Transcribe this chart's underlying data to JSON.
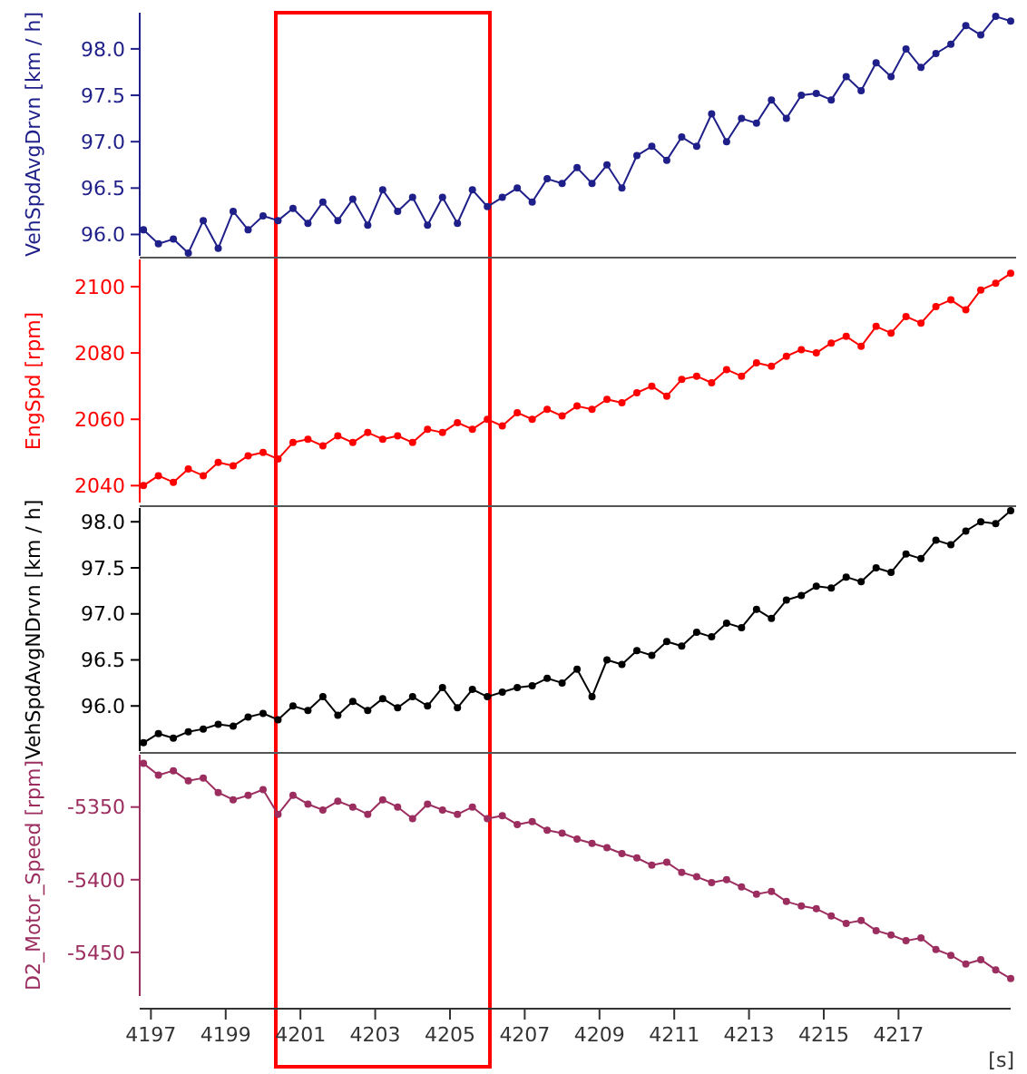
{
  "chart_data": [
    {
      "type": "line",
      "ylabel": "VehSpdAvgDrvn [km / h]",
      "marker": "circle",
      "tick_labels": "y",
      "xlim": [
        4196.7,
        4220
      ],
      "ylim": [
        95.77,
        98.39
      ],
      "yticks": [
        {
          "value": 96,
          "label": "96.0"
        },
        {
          "value": 96.5,
          "label": "96.5"
        },
        {
          "value": 97,
          "label": "97.0"
        },
        {
          "value": 97.5,
          "label": "97.5"
        },
        {
          "value": 98,
          "label": "98.0"
        }
      ],
      "series": [
        {
          "color": "#1f1f8a",
          "x": [
            4196.8,
            4197.2,
            4197.6,
            4198.0,
            4198.4,
            4198.8,
            4199.2,
            4199.6,
            4200.0,
            4200.4,
            4200.8,
            4201.2,
            4201.6,
            4202.0,
            4202.4,
            4202.8,
            4203.2,
            4203.6,
            4204.0,
            4204.4,
            4204.8,
            4205.2,
            4205.6,
            4206.0,
            4206.4,
            4206.8,
            4207.2,
            4207.6,
            4208.0,
            4208.4,
            4208.8,
            4209.2,
            4209.6,
            4210.0,
            4210.4,
            4210.8,
            4211.2,
            4211.6,
            4212.0,
            4212.4,
            4212.8,
            4213.2,
            4213.6,
            4214.0,
            4214.4,
            4214.8,
            4215.2,
            4215.6,
            4216.0,
            4216.4,
            4216.8,
            4217.2,
            4217.6,
            4218.0,
            4218.4,
            4218.8,
            4219.2,
            4219.6,
            4220.0
          ],
          "values": [
            96.05,
            95.9,
            95.95,
            95.8,
            96.15,
            95.85,
            96.25,
            96.05,
            96.2,
            96.15,
            96.28,
            96.12,
            96.35,
            96.15,
            96.38,
            96.1,
            96.48,
            96.25,
            96.4,
            96.1,
            96.4,
            96.12,
            96.48,
            96.3,
            96.4,
            96.5,
            96.35,
            96.6,
            96.55,
            96.72,
            96.55,
            96.75,
            96.5,
            96.85,
            96.95,
            96.8,
            97.05,
            96.95,
            97.3,
            97.0,
            97.25,
            97.2,
            97.45,
            97.25,
            97.5,
            97.52,
            97.45,
            97.7,
            97.55,
            97.85,
            97.7,
            98.0,
            97.8,
            97.95,
            98.05,
            98.25,
            98.15,
            98.35,
            98.3
          ]
        }
      ]
    },
    {
      "type": "line",
      "ylabel": "EngSpd [rpm]",
      "marker": "circle",
      "tick_labels": "y",
      "xlim": [
        4196.7,
        4220
      ],
      "ylim": [
        2034.9,
        2108.2
      ],
      "yticks": [
        2040,
        2060,
        2080,
        2100
      ],
      "series": [
        {
          "color": "#ff0000",
          "x": [
            4196.8,
            4197.2,
            4197.6,
            4198.0,
            4198.4,
            4198.8,
            4199.2,
            4199.6,
            4200.0,
            4200.4,
            4200.8,
            4201.2,
            4201.6,
            4202.0,
            4202.4,
            4202.8,
            4203.2,
            4203.6,
            4204.0,
            4204.4,
            4204.8,
            4205.2,
            4205.6,
            4206.0,
            4206.4,
            4206.8,
            4207.2,
            4207.6,
            4208.0,
            4208.4,
            4208.8,
            4209.2,
            4209.6,
            4210.0,
            4210.4,
            4210.8,
            4211.2,
            4211.6,
            4212.0,
            4212.4,
            4212.8,
            4213.2,
            4213.6,
            4214.0,
            4214.4,
            4214.8,
            4215.2,
            4215.6,
            4216.0,
            4216.4,
            4216.8,
            4217.2,
            4217.6,
            4218.0,
            4218.4,
            4218.8,
            4219.2,
            4219.6,
            4220.0
          ],
          "values": [
            2040,
            2043,
            2041,
            2045,
            2043,
            2047,
            2046,
            2049,
            2050,
            2048,
            2053,
            2054,
            2052,
            2055,
            2053,
            2056,
            2054,
            2055,
            2053,
            2057,
            2056,
            2059,
            2057,
            2060,
            2058,
            2062,
            2060,
            2063,
            2061,
            2064,
            2063,
            2066,
            2065,
            2068,
            2070,
            2067,
            2072,
            2073,
            2071,
            2075,
            2073,
            2077,
            2076,
            2079,
            2081,
            2080,
            2083,
            2085,
            2082,
            2088,
            2086,
            2091,
            2089,
            2094,
            2096,
            2093,
            2099,
            2101,
            2104
          ]
        }
      ]
    },
    {
      "type": "line",
      "ylabel": "VehSpdAvgNDrvn [km / h]",
      "marker": "circle",
      "tick_labels": "y",
      "xlim": [
        4196.7,
        4220
      ],
      "ylim": [
        95.51,
        98.15
      ],
      "yticks": [
        {
          "value": 96,
          "label": "96.0"
        },
        {
          "value": 96.5,
          "label": "96.5"
        },
        {
          "value": 97,
          "label": "97.0"
        },
        {
          "value": 97.5,
          "label": "97.5"
        },
        {
          "value": 98,
          "label": "98.0"
        }
      ],
      "series": [
        {
          "color": "#000000",
          "x": [
            4196.8,
            4197.2,
            4197.6,
            4198.0,
            4198.4,
            4198.8,
            4199.2,
            4199.6,
            4200.0,
            4200.4,
            4200.8,
            4201.2,
            4201.6,
            4202.0,
            4202.4,
            4202.8,
            4203.2,
            4203.6,
            4204.0,
            4204.4,
            4204.8,
            4205.2,
            4205.6,
            4206.0,
            4206.4,
            4206.8,
            4207.2,
            4207.6,
            4208.0,
            4208.4,
            4208.8,
            4209.2,
            4209.6,
            4210.0,
            4210.4,
            4210.8,
            4211.2,
            4211.6,
            4212.0,
            4212.4,
            4212.8,
            4213.2,
            4213.6,
            4214.0,
            4214.4,
            4214.8,
            4215.2,
            4215.6,
            4216.0,
            4216.4,
            4216.8,
            4217.2,
            4217.6,
            4218.0,
            4218.4,
            4218.8,
            4219.2,
            4219.6,
            4220.0
          ],
          "values": [
            95.6,
            95.7,
            95.65,
            95.72,
            95.75,
            95.8,
            95.78,
            95.88,
            95.92,
            95.85,
            96.0,
            95.95,
            96.1,
            95.9,
            96.05,
            95.95,
            96.08,
            95.98,
            96.1,
            96.0,
            96.2,
            95.98,
            96.18,
            96.1,
            96.15,
            96.2,
            96.22,
            96.3,
            96.25,
            96.4,
            96.1,
            96.5,
            96.45,
            96.6,
            96.55,
            96.7,
            96.65,
            96.8,
            96.75,
            96.9,
            96.85,
            97.05,
            96.95,
            97.15,
            97.2,
            97.3,
            97.28,
            97.4,
            97.35,
            97.5,
            97.45,
            97.65,
            97.6,
            97.8,
            97.75,
            97.9,
            98.0,
            97.98,
            98.12
          ]
        }
      ]
    },
    {
      "type": "line",
      "ylabel": "D2_Motor_Speed [rpm]",
      "xlabel": "[s]",
      "marker": "circle",
      "xlim": [
        4196.7,
        4220
      ],
      "xticks": [
        4197,
        4199,
        4201,
        4203,
        4205,
        4207,
        4209,
        4211,
        4213,
        4215,
        4217
      ],
      "ylim": [
        -5480,
        -5314
      ],
      "yticks": [
        {
          "value": -5450,
          "label": "-5450"
        },
        {
          "value": -5400,
          "label": "-5400"
        },
        {
          "value": -5350,
          "label": "-5350"
        }
      ],
      "series": [
        {
          "color": "#9b2d5f",
          "x": [
            4196.8,
            4197.2,
            4197.6,
            4198.0,
            4198.4,
            4198.8,
            4199.2,
            4199.6,
            4200.0,
            4200.4,
            4200.8,
            4201.2,
            4201.6,
            4202.0,
            4202.4,
            4202.8,
            4203.2,
            4203.6,
            4204.0,
            4204.4,
            4204.8,
            4205.2,
            4205.6,
            4206.0,
            4206.4,
            4206.8,
            4207.2,
            4207.6,
            4208.0,
            4208.4,
            4208.8,
            4209.2,
            4209.6,
            4210.0,
            4210.4,
            4210.8,
            4211.2,
            4211.6,
            4212.0,
            4212.4,
            4212.8,
            4213.2,
            4213.6,
            4214.0,
            4214.4,
            4214.8,
            4215.2,
            4215.6,
            4216.0,
            4216.4,
            4216.8,
            4217.2,
            4217.6,
            4218.0,
            4218.4,
            4218.8,
            4219.2,
            4219.6,
            4220.0
          ],
          "values": [
            -5320,
            -5328,
            -5325,
            -5332,
            -5330,
            -5340,
            -5345,
            -5342,
            -5338,
            -5355,
            -5342,
            -5348,
            -5352,
            -5346,
            -5350,
            -5355,
            -5345,
            -5350,
            -5358,
            -5348,
            -5352,
            -5355,
            -5350,
            -5358,
            -5356,
            -5362,
            -5360,
            -5366,
            -5368,
            -5372,
            -5375,
            -5378,
            -5382,
            -5385,
            -5390,
            -5388,
            -5395,
            -5398,
            -5402,
            -5400,
            -5405,
            -5410,
            -5408,
            -5415,
            -5418,
            -5420,
            -5425,
            -5430,
            -5428,
            -5435,
            -5438,
            -5442,
            -5440,
            -5448,
            -5452,
            -5458,
            -5455,
            -5462,
            -5468
          ]
        }
      ]
    }
  ]
}
